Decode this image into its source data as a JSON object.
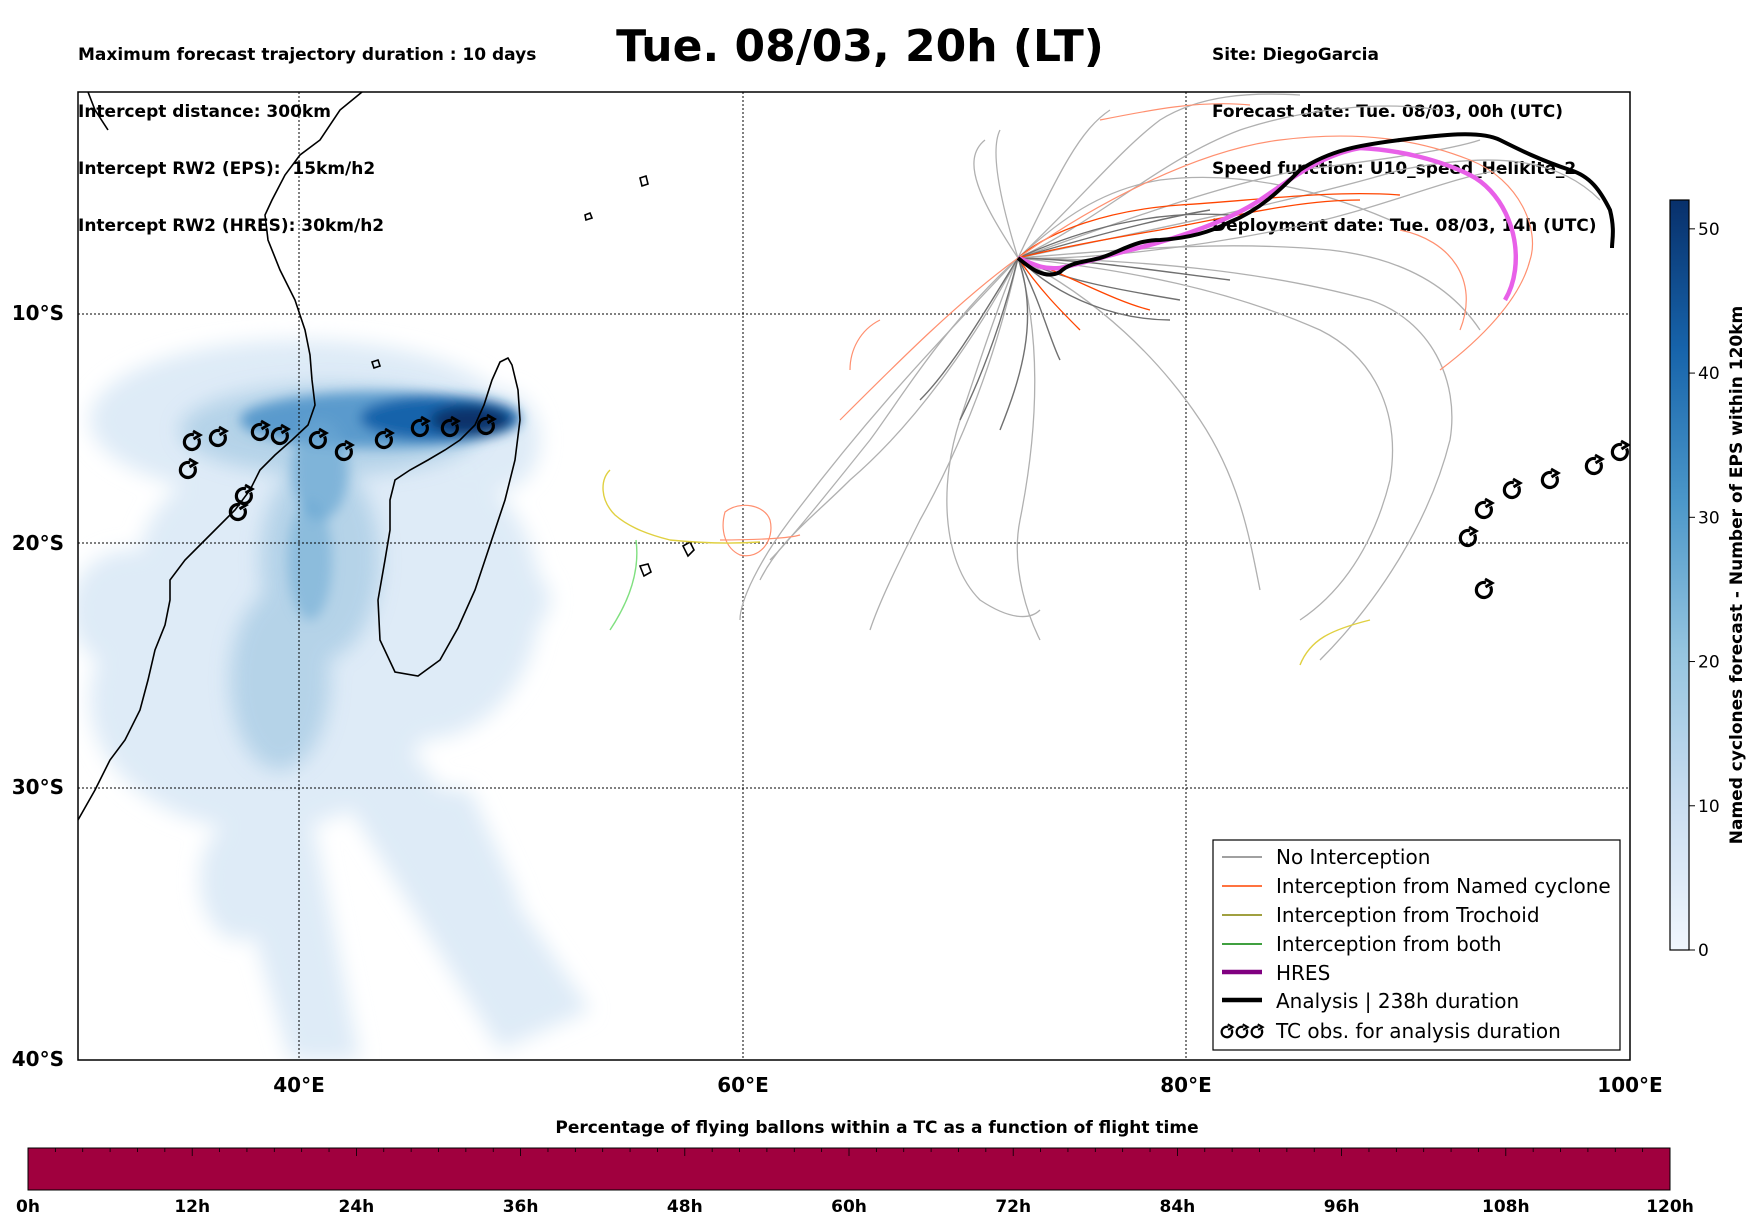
{
  "header": {
    "left": [
      "Maximum forecast trajectory duration : 10 days",
      "Intercept distance: 300km",
      "Intercept RW2 (EPS):  15km/h2",
      "Intercept RW2 (HRES): 30km/h2"
    ],
    "title": "Tue. 08/03, 20h (LT)",
    "right": [
      "Site: DiegoGarcia",
      "Forecast date: Tue. 08/03, 00h (UTC)",
      "Speed function: U10_speed_Helikite_2",
      "Deployment date: Tue. 08/03, 14h (UTC)"
    ]
  },
  "map": {
    "lon_labels": [
      "40°E",
      "60°E",
      "80°E",
      "100°E"
    ],
    "lat_labels": [
      "10°S",
      "20°S",
      "30°S",
      "40°S"
    ],
    "lon_ticks": [
      40,
      60,
      80,
      100
    ],
    "lat_ticks": [
      -10,
      -20,
      -30,
      -40
    ],
    "lon_range": [
      30,
      100
    ],
    "lat_range": [
      0.5,
      -40
    ]
  },
  "legend": {
    "items": [
      {
        "label": "No Interception",
        "color": "#808080",
        "style": "thin"
      },
      {
        "label": "Interception from Named cyclone",
        "color": "#ff4500",
        "style": "thin"
      },
      {
        "label": "Interception from Trochoid",
        "color": "#808000",
        "style": "thin"
      },
      {
        "label": "Interception from both",
        "color": "#008000",
        "style": "thin"
      },
      {
        "label": "HRES",
        "color": "#800080",
        "style": "thick"
      },
      {
        "label": "Analysis | 238h duration",
        "color": "#000000",
        "style": "thick"
      },
      {
        "label": "TC obs. for analysis duration",
        "color": "#000000",
        "style": "cyclone"
      }
    ]
  },
  "colorbar": {
    "label": "Named cyclones forecast - Number of EPS within 120km",
    "ticks": [
      "0",
      "10",
      "20",
      "30",
      "40",
      "50"
    ],
    "min": 0,
    "max": 52
  },
  "bottom_bar": {
    "title": "Percentage of flying ballons within a TC as a function of flight time",
    "ticks": [
      "0h",
      "12h",
      "24h",
      "36h",
      "48h",
      "60h",
      "72h",
      "84h",
      "96h",
      "108h",
      "120h"
    ],
    "color": "#a0003e"
  }
}
